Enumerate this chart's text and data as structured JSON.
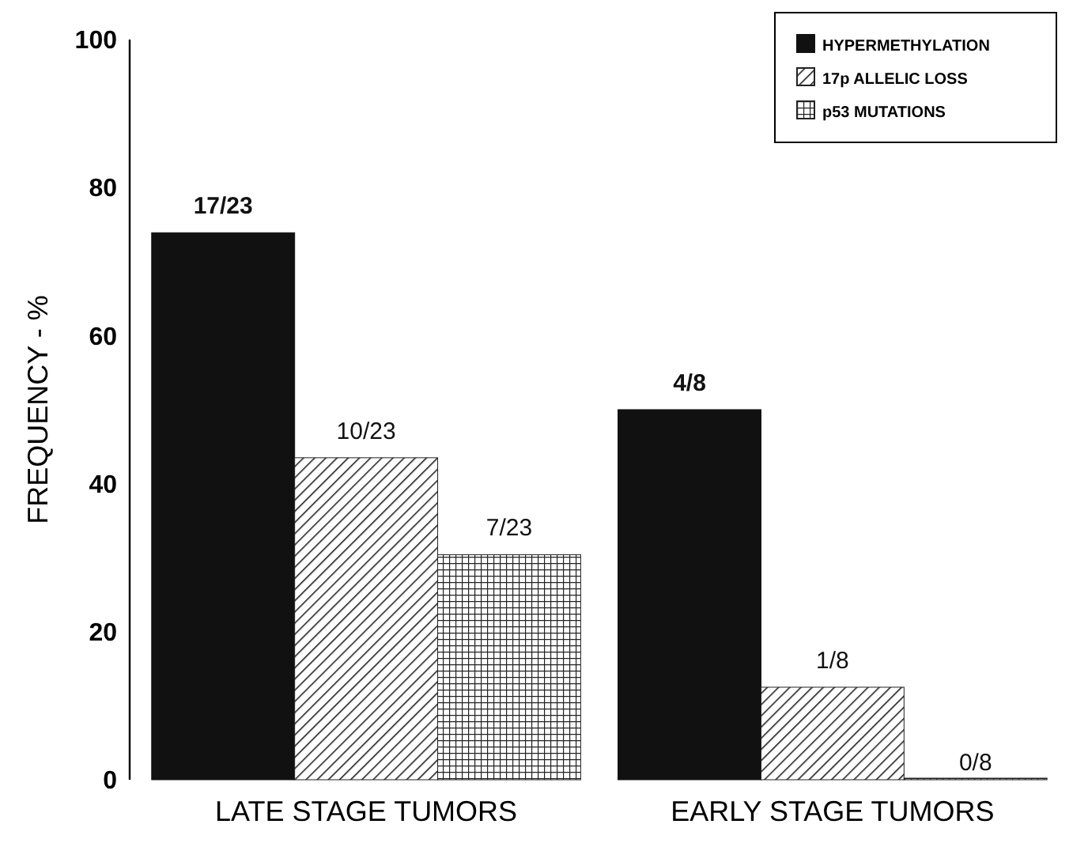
{
  "chart_data": {
    "type": "bar",
    "ylabel": "FREQUENCY - %",
    "categories": [
      "LATE STAGE TUMORS",
      "EARLY STAGE TUMORS"
    ],
    "ylim": [
      0,
      100
    ],
    "yticks": [
      0,
      20,
      40,
      60,
      80,
      100
    ],
    "legend": "top right",
    "grid": false,
    "series": [
      {
        "name": "HYPERMETHYLATION",
        "color": "#111111",
        "values": [
          73.9,
          50
        ]
      },
      {
        "name": "17p ALLELIC LOSS",
        "color": "#222222",
        "values": [
          43.5,
          12.5
        ]
      },
      {
        "name": "p53 MUTATIONS",
        "color": "#222222",
        "values": [
          30.4,
          0
        ]
      }
    ],
    "annotations": [
      "17/23",
      "10/23",
      "7/23",
      "4/8",
      "1/8",
      "0/8"
    ]
  }
}
